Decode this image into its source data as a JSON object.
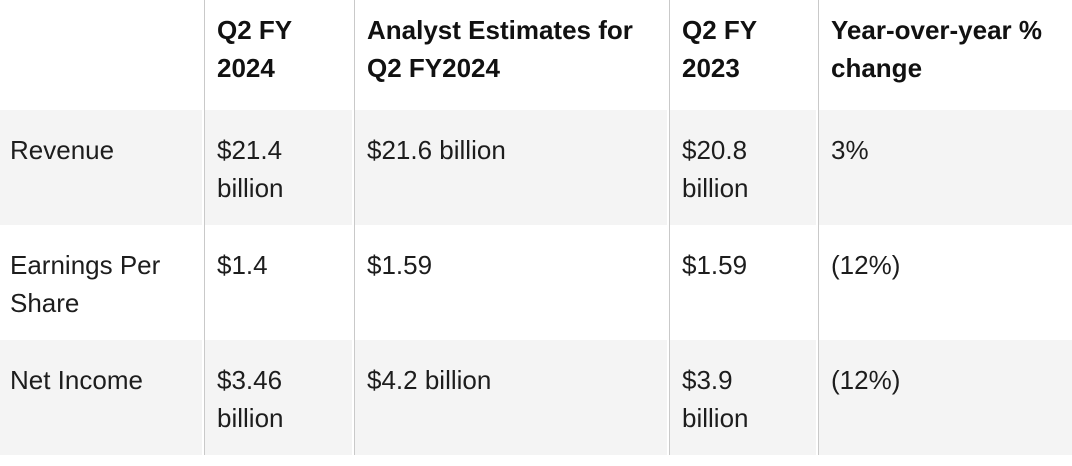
{
  "chart_data": {
    "type": "table",
    "columns": [
      "",
      "Q2 FY 2024",
      "Analyst Estimates for Q2 FY2024",
      "Q2 FY 2023",
      "Year-over-year % change"
    ],
    "rows": [
      [
        "Revenue",
        "$21.4 billion",
        "$21.6 billion",
        "$20.8 billion",
        "3%"
      ],
      [
        "Earnings Per Share",
        "$1.4",
        "$1.59",
        "$1.59",
        "(12%)"
      ],
      [
        "Net Income",
        "$3.46 billion",
        "$4.2 billion",
        "$3.9 billion",
        "(12%)"
      ]
    ],
    "layout": {
      "zebra_striping": true,
      "striped_row_indexes": [
        0,
        2
      ],
      "column_dividers": true,
      "outer_border": false
    }
  },
  "colors": {
    "page_background": "#ffffff",
    "row_stripe": "#f4f4f4",
    "column_divider": "#c9c9c9",
    "header_text": "#111111",
    "body_text": "#1d1d1d"
  }
}
